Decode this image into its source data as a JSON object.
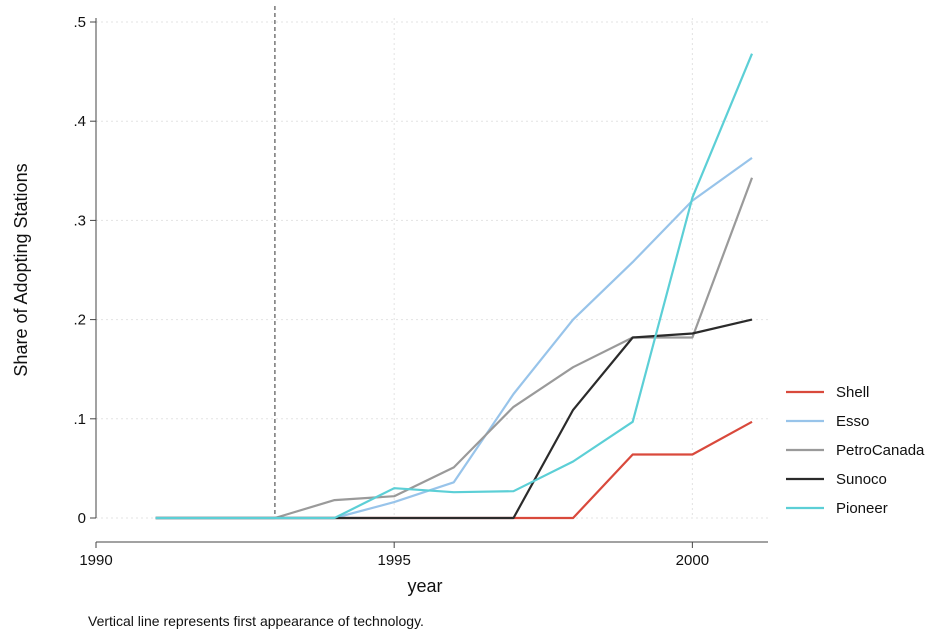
{
  "chart_data": {
    "type": "line",
    "title": "",
    "xlabel": "year",
    "ylabel": "Share of Adopting Stations",
    "xlim": [
      1990,
      2001
    ],
    "ylim": [
      0,
      0.5
    ],
    "xticks": [
      1990,
      1995,
      2000
    ],
    "xtick_labels": [
      "1990",
      "1995",
      "2000"
    ],
    "yticks": [
      0,
      0.1,
      0.2,
      0.3,
      0.4,
      0.5
    ],
    "ytick_labels": [
      "0",
      ".1",
      ".2",
      ".3",
      ".4",
      ".5"
    ],
    "grid": true,
    "legend_position": "right",
    "reference_line": {
      "x": 1993,
      "style": "dashed"
    },
    "x": [
      1991,
      1992,
      1993,
      1994,
      1995,
      1996,
      1997,
      1998,
      1999,
      2000,
      2001
    ],
    "series": [
      {
        "name": "Shell",
        "color": "#d9493c",
        "values": [
          0,
          0,
          0,
          0,
          0,
          0,
          0,
          0,
          0.064,
          0.064,
          0.097
        ]
      },
      {
        "name": "Esso",
        "color": "#98c4ea",
        "values": [
          0,
          0,
          0,
          0,
          0.016,
          0.036,
          0.125,
          0.2,
          0.258,
          0.32,
          0.363
        ]
      },
      {
        "name": "PetroCanada",
        "color": "#9a9a9a",
        "values": [
          0,
          0,
          0,
          0.018,
          0.022,
          0.051,
          0.112,
          0.152,
          0.182,
          0.182,
          0.343
        ]
      },
      {
        "name": "Sunoco",
        "color": "#2b2b2b",
        "values": [
          0,
          0,
          0,
          0,
          0,
          0,
          0,
          0.109,
          0.182,
          0.186,
          0.2
        ]
      },
      {
        "name": "Pioneer",
        "color": "#5ccfd6",
        "values": [
          0,
          0,
          0,
          0,
          0.03,
          0.026,
          0.027,
          0.057,
          0.097,
          0.323,
          0.468
        ]
      }
    ]
  },
  "note": "Vertical line represents first appearance of technology."
}
